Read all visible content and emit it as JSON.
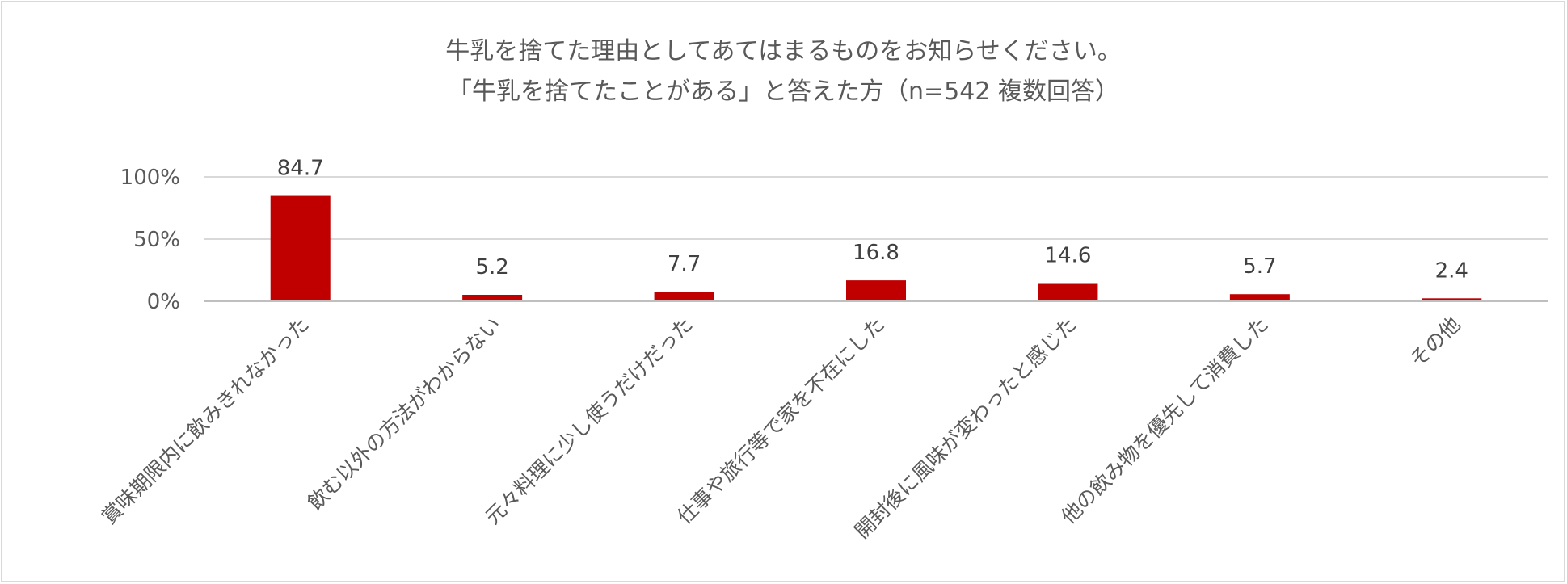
{
  "chart_data": {
    "type": "bar",
    "title": "牛乳を捨てた理由としてあてはまるものをお知らせください。",
    "subtitle": "「牛乳を捨てたことがある」と答えた方（n=542 複数回答）",
    "categories": [
      "賞味期限内に飲みきれなかった",
      "飲む以外の方法がわからない",
      "元々料理に少し使うだけだった",
      "仕事や旅行等で家を不在にした",
      "開封後に風味が変わったと感じた",
      "他の飲み物を優先して消費した",
      "その他"
    ],
    "values": [
      84.7,
      5.2,
      7.7,
      16.8,
      14.6,
      5.7,
      2.4
    ],
    "data_labels": [
      "84.7",
      "5.2",
      "7.7",
      "16.8",
      "14.6",
      "5.7",
      "2.4"
    ],
    "y_ticks": [
      "0%",
      "50%",
      "100%"
    ],
    "ylim": [
      0,
      100
    ],
    "grid": true,
    "legend": "none",
    "bar_color": "#c00000"
  }
}
